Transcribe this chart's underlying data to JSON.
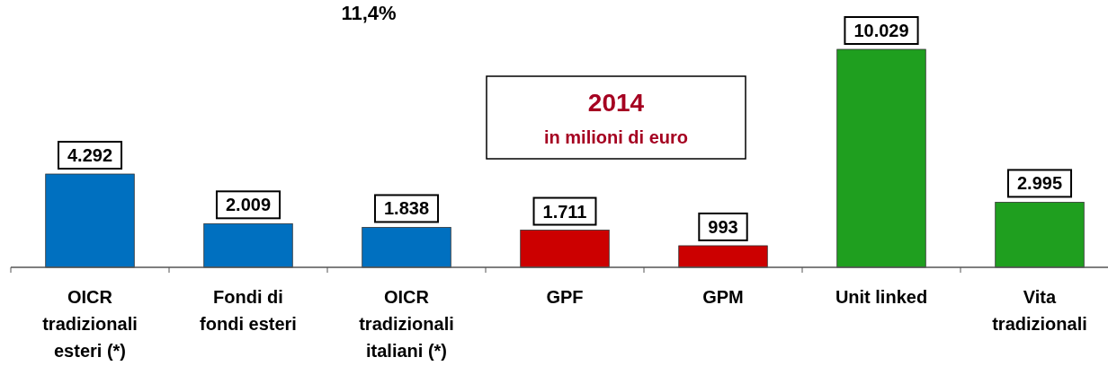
{
  "chart_data": {
    "type": "bar",
    "categories": [
      "OICR tradizionali esteri (*)",
      "Fondi di fondi esteri",
      "OICR tradizionali italiani (*)",
      "GPF",
      "GPM",
      "Unit linked",
      "Vita tradizionali"
    ],
    "values": [
      4292,
      2009,
      1838,
      1711,
      993,
      10029,
      2995
    ],
    "colors": [
      "#0070c0",
      "#0070c0",
      "#0070c0",
      "#cc0000",
      "#cc0000",
      "#1f9f1f",
      "#1f9f1f"
    ],
    "value_labels": [
      "4.292",
      "2.009",
      "1.838",
      "1.711",
      "993",
      "10.029",
      "2.995"
    ],
    "annotations": [
      "11,4%",
      "2014",
      "in milioni di euro"
    ]
  }
}
